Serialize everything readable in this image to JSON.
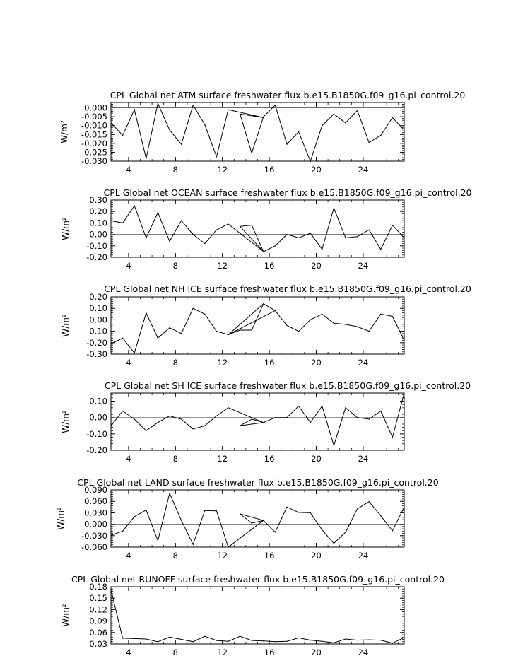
{
  "chart_data": [
    {
      "type": "line",
      "title": "CPL Global net ATM surface freshwater flux b.e15.B1850G.f09_g16.pi_control.20",
      "ylabel": "W/m²",
      "xlim": [
        2.5,
        27.5
      ],
      "ylim": [
        -0.03,
        0.003
      ],
      "x_ticks": [
        4,
        8,
        12,
        16,
        20,
        24
      ],
      "y_ticks": [
        0.0,
        -0.005,
        -0.01,
        -0.015,
        -0.02,
        -0.025,
        -0.03
      ],
      "y_tick_labels": [
        "0.000",
        "-0.005",
        "-0.010",
        "-0.015",
        "-0.020",
        "-0.025",
        "-0.030"
      ],
      "reference_line": 0.0,
      "series": [
        {
          "x": [
            2.5,
            3.5,
            4.5,
            5.5,
            6.5,
            7.5,
            8.5,
            9.5,
            10.5,
            11.5,
            12.5,
            15.5,
            13.5,
            14.5,
            15.5,
            16.5,
            17.5,
            18.5,
            19.5,
            20.5,
            21.5,
            22.5,
            23.5,
            24.5,
            25.5,
            26.5,
            27.5
          ],
          "values": [
            -0.0085,
            -0.0155,
            -0.001,
            -0.0285,
            0.0025,
            -0.0125,
            -0.0205,
            0.0015,
            -0.0095,
            -0.0275,
            -0.001,
            -0.0055,
            -0.0035,
            -0.0255,
            -0.005,
            0.0015,
            -0.0205,
            -0.0135,
            -0.03,
            -0.01,
            -0.0035,
            -0.0085,
            -0.0015,
            -0.0195,
            -0.0155,
            -0.0055,
            -0.0125
          ]
        }
      ]
    },
    {
      "type": "line",
      "title": "CPL Global net OCEAN surface freshwater flux b.e15.B1850G.f09_g16.pi_control.20",
      "ylabel": "W/m²",
      "xlim": [
        2.5,
        27.5
      ],
      "ylim": [
        -0.2,
        0.3
      ],
      "x_ticks": [
        4,
        8,
        12,
        16,
        20,
        24
      ],
      "y_ticks": [
        0.3,
        0.2,
        0.1,
        0.0,
        -0.1,
        -0.2
      ],
      "y_tick_labels": [
        "0.30",
        "0.20",
        "0.10",
        "0.00",
        "-0.10",
        "-0.20"
      ],
      "reference_line": 0.0,
      "series": [
        {
          "x": [
            2.5,
            3.5,
            4.5,
            5.5,
            6.5,
            7.5,
            8.5,
            9.5,
            10.5,
            11.5,
            12.5,
            15.5,
            13.5,
            14.5,
            15.5,
            16.5,
            17.5,
            18.5,
            19.5,
            20.5,
            21.5,
            22.5,
            23.5,
            24.5,
            25.5,
            26.5,
            27.5
          ],
          "values": [
            0.12,
            0.1,
            0.25,
            -0.03,
            0.19,
            -0.06,
            0.12,
            0.0,
            -0.08,
            0.04,
            0.09,
            -0.15,
            0.07,
            0.08,
            -0.15,
            -0.1,
            0.0,
            -0.03,
            0.01,
            -0.13,
            0.23,
            -0.03,
            -0.02,
            0.04,
            -0.13,
            0.08,
            -0.03
          ]
        }
      ]
    },
    {
      "type": "line",
      "title": "CPL Global net NH ICE surface freshwater flux b.e15.B1850G.f09_g16.pi_control.20",
      "ylabel": "W/m²",
      "xlim": [
        2.5,
        27.5
      ],
      "ylim": [
        -0.3,
        0.2
      ],
      "x_ticks": [
        4,
        8,
        12,
        16,
        20,
        24
      ],
      "y_ticks": [
        0.2,
        0.1,
        0.0,
        -0.1,
        -0.2,
        -0.3
      ],
      "y_tick_labels": [
        "0.20",
        "0.10",
        "0.00",
        "-0.10",
        "-0.20",
        "-0.30"
      ],
      "reference_line": 0.0,
      "series": [
        {
          "x": [
            2.5,
            3.5,
            4.5,
            5.5,
            6.5,
            7.5,
            8.5,
            9.5,
            10.5,
            11.5,
            12.5,
            15.5,
            16.5,
            12.5,
            13.5,
            14.5,
            15.5,
            16.5,
            17.5,
            18.5,
            19.5,
            20.5,
            21.5,
            22.5,
            23.5,
            24.5,
            25.5,
            26.5,
            27.5
          ],
          "values": [
            -0.21,
            -0.16,
            -0.29,
            0.06,
            -0.16,
            -0.07,
            -0.12,
            0.1,
            0.05,
            -0.1,
            -0.13,
            0.14,
            0.08,
            -0.13,
            -0.09,
            -0.09,
            0.14,
            0.08,
            -0.05,
            -0.1,
            0.0,
            0.05,
            -0.03,
            -0.04,
            -0.06,
            -0.1,
            0.05,
            0.03,
            -0.18
          ]
        }
      ]
    },
    {
      "type": "line",
      "title": "CPL Global net SH ICE surface freshwater flux b.e15.B1850G.f09_g16.pi_control.20",
      "ylabel": "W/m²",
      "xlim": [
        2.5,
        27.5
      ],
      "ylim": [
        -0.2,
        0.15
      ],
      "x_ticks": [
        4,
        8,
        12,
        16,
        20,
        24
      ],
      "y_ticks": [
        0.1,
        0.0,
        -0.1,
        -0.2
      ],
      "y_tick_labels": [
        "0.10",
        "0.00",
        "-0.10",
        "-0.20"
      ],
      "reference_line": 0.0,
      "series": [
        {
          "x": [
            2.5,
            3.5,
            4.5,
            5.5,
            6.5,
            7.5,
            8.5,
            9.5,
            10.5,
            11.5,
            12.5,
            15.5,
            13.5,
            14.5,
            15.5,
            16.5,
            17.5,
            18.5,
            19.5,
            20.5,
            21.5,
            22.5,
            23.5,
            24.5,
            25.5,
            26.5,
            27.5
          ],
          "values": [
            -0.05,
            0.04,
            -0.01,
            -0.08,
            -0.03,
            0.01,
            -0.01,
            -0.07,
            -0.05,
            0.01,
            0.06,
            -0.03,
            -0.05,
            -0.01,
            -0.03,
            0.0,
            0.0,
            0.07,
            -0.03,
            0.07,
            -0.17,
            0.06,
            0.0,
            -0.01,
            0.04,
            -0.12,
            0.15
          ]
        }
      ]
    },
    {
      "type": "line",
      "title": "CPL Global net LAND surface freshwater flux b.e15.B1850G.f09_g16.pi_control.20",
      "ylabel": "W/m²",
      "xlim": [
        2.5,
        27.5
      ],
      "ylim": [
        -0.06,
        0.09
      ],
      "x_ticks": [
        4,
        8,
        12,
        16,
        20,
        24
      ],
      "y_ticks": [
        0.09,
        0.06,
        0.03,
        0.0,
        -0.03,
        -0.06
      ],
      "y_tick_labels": [
        "0.090",
        "0.060",
        "0.030",
        "0.000",
        "-0.030",
        "-0.060"
      ],
      "reference_line": 0.0,
      "series": [
        {
          "x": [
            2.5,
            3.5,
            4.5,
            5.5,
            6.5,
            7.5,
            8.5,
            9.5,
            10.5,
            11.5,
            12.5,
            15.5,
            13.5,
            14.5,
            15.5,
            16.5,
            17.5,
            18.5,
            19.5,
            20.5,
            21.5,
            22.5,
            23.5,
            24.5,
            25.5,
            26.5,
            27.5
          ],
          "values": [
            -0.029,
            -0.018,
            0.02,
            0.037,
            -0.043,
            0.081,
            0.01,
            -0.053,
            0.036,
            0.035,
            -0.06,
            0.01,
            0.027,
            0.003,
            0.01,
            -0.021,
            0.045,
            0.031,
            0.03,
            -0.015,
            -0.05,
            -0.021,
            0.04,
            0.059,
            0.022,
            -0.017,
            0.045
          ]
        }
      ]
    },
    {
      "type": "line",
      "title": "CPL Global net RUNOFF surface freshwater flux b.e15.B1850G.f09_g16.pi_control.20",
      "ylabel": "W/m²",
      "xlim": [
        2.5,
        27.5
      ],
      "ylim": [
        0.03,
        0.18
      ],
      "x_ticks": [
        4,
        8,
        12,
        16,
        20,
        24
      ],
      "y_ticks": [
        0.18,
        0.15,
        0.12,
        0.09,
        0.06,
        0.03
      ],
      "y_tick_labels": [
        "0.18",
        "0.15",
        "0.12",
        "0.09",
        "0.06",
        "0.03"
      ],
      "reference_line": null,
      "series": [
        {
          "x": [
            2.5,
            3.5,
            4.5,
            5.5,
            6.5,
            7.5,
            8.5,
            9.5,
            10.5,
            11.5,
            12.5,
            13.5,
            14.5,
            15.5,
            16.5,
            17.5,
            18.5,
            19.5,
            20.5,
            21.5,
            22.5,
            23.5,
            24.5,
            25.5,
            26.5,
            27.5
          ],
          "values": [
            0.172,
            0.045,
            0.044,
            0.043,
            0.036,
            0.048,
            0.042,
            0.036,
            0.05,
            0.039,
            0.037,
            0.05,
            0.039,
            0.038,
            0.036,
            0.037,
            0.046,
            0.04,
            0.037,
            0.033,
            0.043,
            0.04,
            0.041,
            0.04,
            0.032,
            0.047
          ]
        }
      ]
    }
  ]
}
